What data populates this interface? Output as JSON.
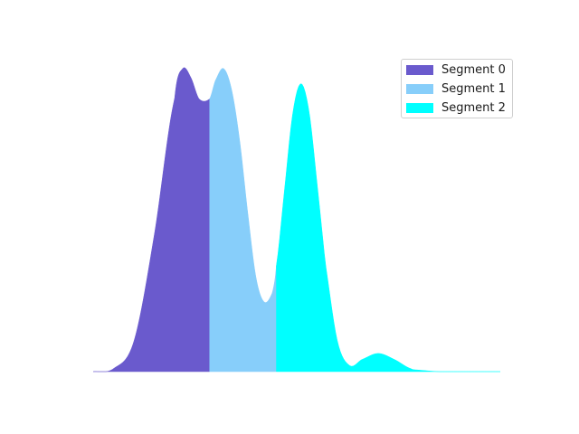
{
  "chart_data": {
    "type": "area",
    "title": "",
    "xlabel": "",
    "ylabel": "",
    "axes_visible": false,
    "grid": false,
    "legend_position": "top-right",
    "xlim": [
      0,
      10
    ],
    "ylim": [
      0,
      1.05
    ],
    "x": [
      0.0,
      0.5,
      1.0,
      1.5,
      2.0,
      2.2,
      2.4,
      2.6,
      2.86,
      3.0,
      3.2,
      3.4,
      3.6,
      3.8,
      4.0,
      4.2,
      4.4,
      4.5,
      4.7,
      4.9,
      5.1,
      5.3,
      5.5,
      5.7,
      6.0,
      6.3,
      6.6,
      7.0,
      7.4,
      7.8,
      8.0,
      8.5,
      9.0,
      9.5,
      10.0
    ],
    "y": [
      0.0,
      0.01,
      0.1,
      0.45,
      0.9,
      1.0,
      0.97,
      0.9,
      0.9,
      0.96,
      1.0,
      0.93,
      0.76,
      0.52,
      0.31,
      0.23,
      0.26,
      0.35,
      0.6,
      0.85,
      0.95,
      0.86,
      0.62,
      0.36,
      0.1,
      0.02,
      0.04,
      0.06,
      0.04,
      0.01,
      0.005,
      0.0,
      0.0,
      0.0,
      0.0
    ],
    "series": [
      {
        "name": "Segment 0",
        "x_range": [
          0.0,
          2.86
        ],
        "color": "#6a5acd"
      },
      {
        "name": "Segment 1",
        "x_range": [
          2.86,
          4.5
        ],
        "color": "#87cefa"
      },
      {
        "name": "Segment 2",
        "x_range": [
          4.5,
          10.0
        ],
        "color": "#00ffff"
      }
    ]
  }
}
